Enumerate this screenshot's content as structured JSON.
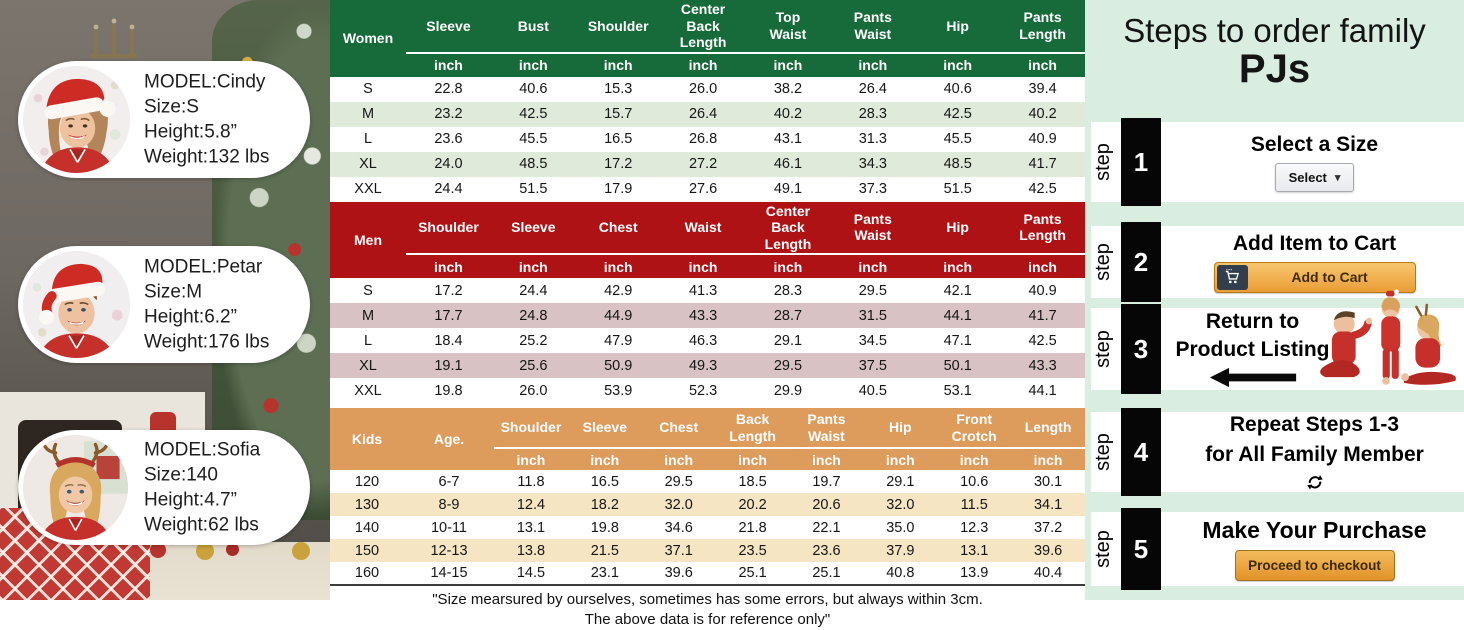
{
  "left_panel": {
    "models": [
      {
        "name_line": "MODEL:Cindy",
        "size_line": "Size:S",
        "height_line": "Height:5.8”",
        "weight_line": "Weight:132 lbs",
        "avatar": "woman-santa-hat"
      },
      {
        "name_line": "MODEL:Petar",
        "size_line": "Size:M",
        "height_line": "Height:6.2”",
        "weight_line": "Weight:176 lbs",
        "avatar": "man-santa-hat"
      },
      {
        "name_line": "MODEL:Sofia",
        "size_line": "Size:140",
        "height_line": "Height:4.7”",
        "weight_line": "Weight:62 lbs",
        "avatar": "girl-reindeer-antlers"
      }
    ]
  },
  "chart_data": [
    {
      "type": "table",
      "group": "Women",
      "theme": "green",
      "unit": "inch",
      "span_headers": [
        "Women"
      ],
      "columns": [
        "Sleeve",
        "Bust",
        "Shoulder",
        "Center Back\nLength",
        "Top\nWaist",
        "Pants\nWaist",
        "Hip",
        "Pants\nLength"
      ],
      "rows": [
        [
          "S",
          "22.8",
          "40.6",
          "15.3",
          "26.0",
          "38.2",
          "26.4",
          "40.6",
          "39.4"
        ],
        [
          "M",
          "23.2",
          "42.5",
          "15.7",
          "26.4",
          "40.2",
          "28.3",
          "42.5",
          "40.2"
        ],
        [
          "L",
          "23.6",
          "45.5",
          "16.5",
          "26.8",
          "43.1",
          "31.3",
          "45.5",
          "40.9"
        ],
        [
          "XL",
          "24.0",
          "48.5",
          "17.2",
          "27.2",
          "46.1",
          "34.3",
          "48.5",
          "41.7"
        ],
        [
          "XXL",
          "24.4",
          "51.5",
          "17.9",
          "27.6",
          "49.1",
          "37.3",
          "51.5",
          "42.5"
        ]
      ]
    },
    {
      "type": "table",
      "group": "Men",
      "theme": "red",
      "unit": "inch",
      "span_headers": [
        "Men"
      ],
      "columns": [
        "Shoulder",
        "Sleeve",
        "Chest",
        "Waist",
        "Center Back\nLength",
        "Pants\nWaist",
        "Hip",
        "Pants\nLength"
      ],
      "rows": [
        [
          "S",
          "17.2",
          "24.4",
          "42.9",
          "41.3",
          "28.3",
          "29.5",
          "42.1",
          "40.9"
        ],
        [
          "M",
          "17.7",
          "24.8",
          "44.9",
          "43.3",
          "28.7",
          "31.5",
          "44.1",
          "41.7"
        ],
        [
          "L",
          "18.4",
          "25.2",
          "47.9",
          "46.3",
          "29.1",
          "34.5",
          "47.1",
          "42.5"
        ],
        [
          "XL",
          "19.1",
          "25.6",
          "50.9",
          "49.3",
          "29.5",
          "37.5",
          "50.1",
          "43.3"
        ],
        [
          "XXL",
          "19.8",
          "26.0",
          "53.9",
          "52.3",
          "29.9",
          "40.5",
          "53.1",
          "44.1"
        ]
      ]
    },
    {
      "type": "table",
      "group": "Kids",
      "theme": "orange",
      "unit": "inch",
      "span_headers": [
        "Kids",
        "Age."
      ],
      "columns": [
        "Shoulder",
        "Sleeve",
        "Chest",
        "Back\nLength",
        "Pants\nWaist",
        "Hip",
        "Front\nCrotch",
        "Length"
      ],
      "rows": [
        [
          "120",
          "6-7",
          "11.8",
          "16.5",
          "29.5",
          "18.5",
          "19.7",
          "29.1",
          "10.6",
          "30.1"
        ],
        [
          "130",
          "8-9",
          "12.4",
          "18.2",
          "32.0",
          "20.2",
          "20.6",
          "32.0",
          "11.5",
          "34.1"
        ],
        [
          "140",
          "10-11",
          "13.1",
          "19.8",
          "34.6",
          "21.8",
          "22.1",
          "35.0",
          "12.3",
          "37.2"
        ],
        [
          "150",
          "12-13",
          "13.8",
          "21.5",
          "37.1",
          "23.5",
          "23.6",
          "37.9",
          "13.1",
          "39.6"
        ],
        [
          "160",
          "14-15",
          "14.5",
          "23.1",
          "39.6",
          "25.1",
          "25.1",
          "40.8",
          "13.9",
          "40.4"
        ]
      ]
    }
  ],
  "footer": {
    "line1": "\"Size mearsured by ourselves, sometimes has some errors, but always within 3cm.",
    "line2": "The above data is for reference only\""
  },
  "steps_panel": {
    "title_line1": "Steps to order family",
    "title_line2": "PJs",
    "step_word": "step",
    "steps": [
      {
        "number": "1",
        "heading_line1": "Select a Size",
        "control_label": "Select"
      },
      {
        "number": "2",
        "heading_line1": "Add Item to Cart",
        "control_label": "Add to Cart"
      },
      {
        "number": "3",
        "heading_line1": "Return to",
        "heading_line2": "Product Listing"
      },
      {
        "number": "4",
        "heading_line1": "Repeat Steps 1-3",
        "heading_line2": "for All Family Member"
      },
      {
        "number": "5",
        "heading_line1": "Make Your Purchase",
        "control_label": "Proceed to checkout"
      }
    ]
  },
  "icons": {
    "cart": "cart-icon",
    "refresh": "refresh-icon",
    "back_arrow": "left-arrow-icon",
    "dropdown_chevron": "▾"
  },
  "colors": {
    "women_header": "#176a39",
    "women_alt_row": "#dfeadb",
    "men_header": "#ae1215",
    "men_alt_row": "#d8c2c3",
    "kids_header": "#dd9b5c",
    "kids_alt_row": "#f5e5c2",
    "panel_mint": "#d9ede1",
    "amazon_orange": "#ea9d35",
    "step_black": "#060606"
  }
}
